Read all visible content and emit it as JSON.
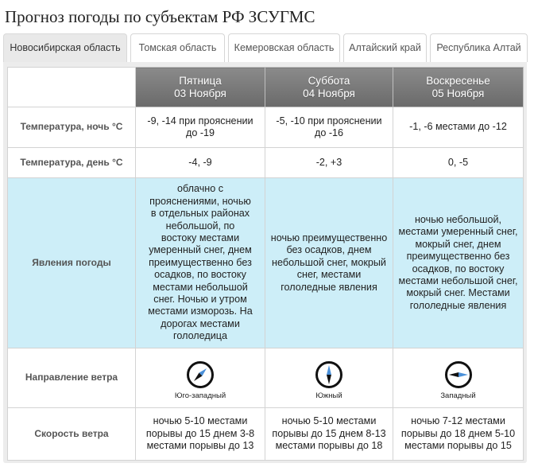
{
  "page": {
    "title": "Прогноз погоды по субъектам РФ ЗСУГМС"
  },
  "tabs": [
    {
      "label": "Новосибирская область",
      "active": true
    },
    {
      "label": "Томская область",
      "active": false
    },
    {
      "label": "Кемеровская область",
      "active": false
    },
    {
      "label": "Алтайский край",
      "active": false
    },
    {
      "label": "Республика Алтай",
      "active": false
    }
  ],
  "forecast": {
    "days": [
      {
        "weekday": "Пятница",
        "date": "03 Ноября"
      },
      {
        "weekday": "Суббота",
        "date": "04 Ноября"
      },
      {
        "weekday": "Воскресенье",
        "date": "05 Ноября"
      }
    ],
    "rows": {
      "temp_night": {
        "label": "Температура, ночь °С",
        "values": [
          "-9, -14 при прояснении до -19",
          "-5, -10 при прояснении до -16",
          "-1, -6 местами до -12"
        ]
      },
      "temp_day": {
        "label": "Температура, день °С",
        "values": [
          "-4, -9",
          "-2, +3",
          "0, -5"
        ]
      },
      "phenomena": {
        "label": "Явления погоды",
        "values": [
          "облачно с прояснениями, ночью в отдельных районах небольшой, по востоку местами умеренный снег, днем преимущественно без осадков, по востоку местами небольшой снег. Ночью и утром местами изморозь. На дорогах местами гололедица",
          "ночью преимущественно без осадков, днем небольшой снег, мокрый снег, местами гололедные явления",
          "ночью небольшой, местами умеренный снег, мокрый снег, днем преимущественно без осадков, по востоку местами небольшой снег, мокрый снег. Местами гололедные явления"
        ]
      },
      "wind_direction": {
        "label": "Направление ветра",
        "values": [
          "Юго-западный",
          "Южный",
          "Западный"
        ],
        "icons": [
          "compass-southwest-icon",
          "compass-south-icon",
          "compass-west-icon"
        ]
      },
      "wind_speed": {
        "label": "Скорость ветра",
        "values": [
          "ночью 5-10 местами порывы до 15 днем 3-8 местами порывы до 13",
          "ночью 5-10 местами порывы до 15 днем 8-13 местами порывы до 18",
          "ночью 7-12 местами порывы до 18 днем 5-10 местами порывы до 15"
        ]
      }
    }
  },
  "colors": {
    "header_gradient_top": "#8a8a8a",
    "header_gradient_bottom": "#6a6a6a",
    "phenomena_bg": "#cdeef8",
    "arrow_blue": "#4a90d9",
    "panel_bg": "#ececec"
  }
}
